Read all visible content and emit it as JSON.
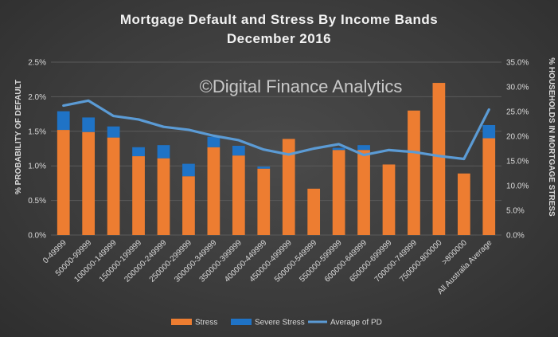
{
  "chart_data": {
    "type": "bar",
    "title_lines": [
      "Mortgage Default and Stress By Income Bands",
      "December 2016"
    ],
    "watermark": "©Digital Finance Analytics",
    "ylabel": "% PROBABILITY OF DEFAULT",
    "y2label": "% HOUSEHOLDS IN MORTGAGE STRESS",
    "ylim": [
      0,
      2.5
    ],
    "y2lim": [
      0,
      35
    ],
    "y_ticks": [
      "0.0%",
      "0.5%",
      "1.0%",
      "1.5%",
      "2.0%",
      "2.5%"
    ],
    "y2_ticks": [
      "0.0%",
      "5.0%",
      "10.0%",
      "15.0%",
      "20.0%",
      "25.0%",
      "30.0%",
      "35.0%"
    ],
    "categories": [
      "0-49999",
      "50000-99999",
      "100000-149999",
      "150000-199999",
      "200000-249999",
      "250000-299999",
      "300000-349999",
      "350000-399999",
      "400000-449999",
      "450000-499999",
      "500000-549999",
      "550000-599999",
      "600000-649999",
      "650000-699999",
      "700000-749999",
      "750000-800000",
      ">800000",
      "All Australia Average"
    ],
    "series": [
      {
        "name": "Stress",
        "color": "#ed7d31",
        "axis": "left",
        "stack": true,
        "values": [
          1.52,
          1.49,
          1.41,
          1.14,
          1.11,
          0.85,
          1.27,
          1.15,
          0.96,
          1.39,
          0.67,
          1.23,
          1.23,
          1.02,
          1.8,
          2.2,
          0.89,
          1.4
        ]
      },
      {
        "name": "Severe Stress",
        "color": "#1f73c6",
        "axis": "left",
        "stack": true,
        "values": [
          0.27,
          0.21,
          0.16,
          0.13,
          0.19,
          0.18,
          0.15,
          0.14,
          0.03,
          0.0,
          0.0,
          0.03,
          0.07,
          0.0,
          0.0,
          0.0,
          0.0,
          0.19
        ]
      },
      {
        "name": "Average of PD",
        "color": "#5b9bd5",
        "axis": "right",
        "type": "line",
        "values": [
          26.2,
          27.2,
          24.1,
          23.4,
          21.9,
          21.3,
          20.1,
          19.2,
          17.3,
          16.3,
          17.5,
          18.4,
          16.2,
          17.2,
          16.8,
          16.0,
          15.4,
          25.4
        ]
      }
    ],
    "legend_position": "bottom",
    "grid": true
  }
}
